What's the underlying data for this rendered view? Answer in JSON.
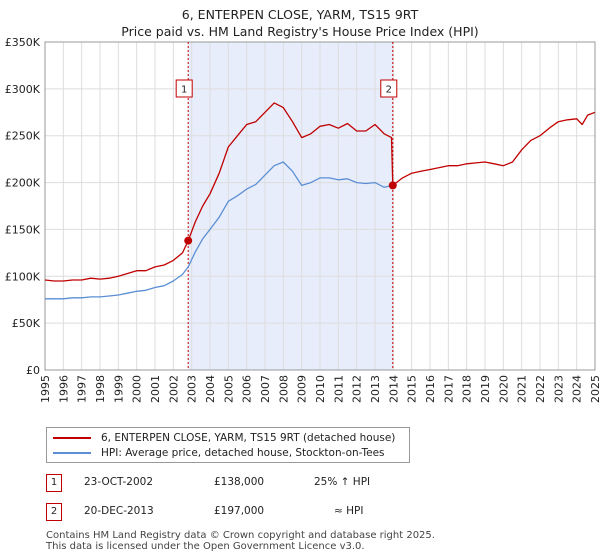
{
  "header": {
    "title_line1": "6, ENTERPEN CLOSE, YARM, TS15 9RT",
    "title_line2": "Price paid vs. HM Land Registry's House Price Index (HPI)"
  },
  "colors": {
    "property": "#c00000",
    "hpi": "#5b8fd4",
    "shade": "#e8edfb",
    "grid": "#dddddd"
  },
  "chart_data": {
    "type": "line",
    "title": "6, ENTERPEN CLOSE, YARM, TS15 9RT — Price paid vs. HM Land Registry's House Price Index (HPI)",
    "xlabel": "",
    "ylabel": "",
    "xlim": [
      1995,
      2025
    ],
    "ylim": [
      0,
      350000
    ],
    "y_ticks": [
      0,
      50000,
      100000,
      150000,
      200000,
      250000,
      300000,
      350000
    ],
    "y_tick_labels": [
      "£0",
      "£50K",
      "£100K",
      "£150K",
      "£200K",
      "£250K",
      "£300K",
      "£350K"
    ],
    "x_ticks": [
      1995,
      1996,
      1997,
      1998,
      1999,
      2000,
      2001,
      2002,
      2003,
      2004,
      2005,
      2006,
      2007,
      2008,
      2009,
      2010,
      2011,
      2012,
      2013,
      2014,
      2015,
      2016,
      2017,
      2018,
      2019,
      2020,
      2021,
      2022,
      2023,
      2024,
      2025
    ],
    "x_tick_labels": [
      "1995",
      "1996",
      "1997",
      "1998",
      "1999",
      "2000",
      "2001",
      "2002",
      "2003",
      "2004",
      "2005",
      "2006",
      "2007",
      "2008",
      "2009",
      "2010",
      "2011",
      "2012",
      "2013",
      "2014",
      "2015",
      "2016",
      "2017",
      "2018",
      "2019",
      "2020",
      "2021",
      "2022",
      "2023",
      "2024",
      "2025"
    ],
    "grid": true,
    "ownership_span": [
      2002.81,
      2013.97
    ],
    "series": [
      {
        "name": "6, ENTERPEN CLOSE, YARM, TS15 9RT (detached house)",
        "color": "#c00000",
        "x": [
          1995.0,
          1995.5,
          1996.0,
          1996.5,
          1997.0,
          1997.5,
          1998.0,
          1998.5,
          1999.0,
          1999.5,
          2000.0,
          2000.5,
          2001.0,
          2001.5,
          2002.0,
          2002.5,
          2002.81,
          2003.2,
          2003.6,
          2004.0,
          2004.5,
          2005.0,
          2005.5,
          2006.0,
          2006.5,
          2007.0,
          2007.5,
          2008.0,
          2008.5,
          2009.0,
          2009.5,
          2010.0,
          2010.5,
          2011.0,
          2011.5,
          2012.0,
          2012.5,
          2013.0,
          2013.5,
          2013.9,
          2013.97,
          2014.5,
          2015.0,
          2015.5,
          2016.0,
          2016.5,
          2017.0,
          2017.5,
          2018.0,
          2018.5,
          2019.0,
          2019.5,
          2020.0,
          2020.5,
          2021.0,
          2021.5,
          2022.0,
          2022.5,
          2023.0,
          2023.5,
          2024.0,
          2024.3,
          2024.6,
          2025.0
        ],
        "values": [
          96000,
          95000,
          95000,
          96000,
          96000,
          98000,
          97000,
          98000,
          100000,
          103000,
          106000,
          106000,
          110000,
          112000,
          117000,
          125000,
          138000,
          158000,
          175000,
          188000,
          210000,
          238000,
          250000,
          262000,
          265000,
          275000,
          285000,
          280000,
          265000,
          248000,
          252000,
          260000,
          262000,
          258000,
          263000,
          255000,
          255000,
          262000,
          252000,
          248000,
          197000,
          205000,
          210000,
          212000,
          214000,
          216000,
          218000,
          218000,
          220000,
          221000,
          222000,
          220000,
          218000,
          222000,
          235000,
          245000,
          250000,
          258000,
          265000,
          267000,
          268000,
          262000,
          272000,
          275000
        ]
      },
      {
        "name": "HPI: Average price, detached house, Stockton-on-Tees",
        "color": "#5b8fd4",
        "x": [
          1995.0,
          1995.5,
          1996.0,
          1996.5,
          1997.0,
          1997.5,
          1998.0,
          1998.5,
          1999.0,
          1999.5,
          2000.0,
          2000.5,
          2001.0,
          2001.5,
          2002.0,
          2002.5,
          2002.81,
          2003.2,
          2003.6,
          2004.0,
          2004.5,
          2005.0,
          2005.5,
          2006.0,
          2006.5,
          2007.0,
          2007.5,
          2008.0,
          2008.5,
          2009.0,
          2009.5,
          2010.0,
          2010.5,
          2011.0,
          2011.5,
          2012.0,
          2012.5,
          2013.0,
          2013.5,
          2013.97
        ],
        "values": [
          76000,
          76000,
          76000,
          77000,
          77000,
          78000,
          78000,
          79000,
          80000,
          82000,
          84000,
          85000,
          88000,
          90000,
          95000,
          102000,
          110000,
          126000,
          140000,
          150000,
          163000,
          180000,
          186000,
          193000,
          198000,
          208000,
          218000,
          222000,
          212000,
          197000,
          200000,
          205000,
          205000,
          203000,
          204000,
          200000,
          199000,
          200000,
          195000,
          197000
        ]
      }
    ],
    "sales": [
      {
        "id": "1",
        "x": 2002.81,
        "y": 138000
      },
      {
        "id": "2",
        "x": 2013.97,
        "y": 197000
      }
    ]
  },
  "legend": {
    "property_label": "6, ENTERPEN CLOSE, YARM, TS15 9RT (detached house)",
    "hpi_label": "HPI: Average price, detached house, Stockton-on-Tees"
  },
  "sales_table": [
    {
      "id": "1",
      "date": "23-OCT-2002",
      "price": "£138,000",
      "relation": "25% ↑ HPI"
    },
    {
      "id": "2",
      "date": "20-DEC-2013",
      "price": "£197,000",
      "relation": "≈ HPI"
    }
  ],
  "footer": {
    "line1": "Contains HM Land Registry data © Crown copyright and database right 2025.",
    "line2": "This data is licensed under the Open Government Licence v3.0."
  }
}
